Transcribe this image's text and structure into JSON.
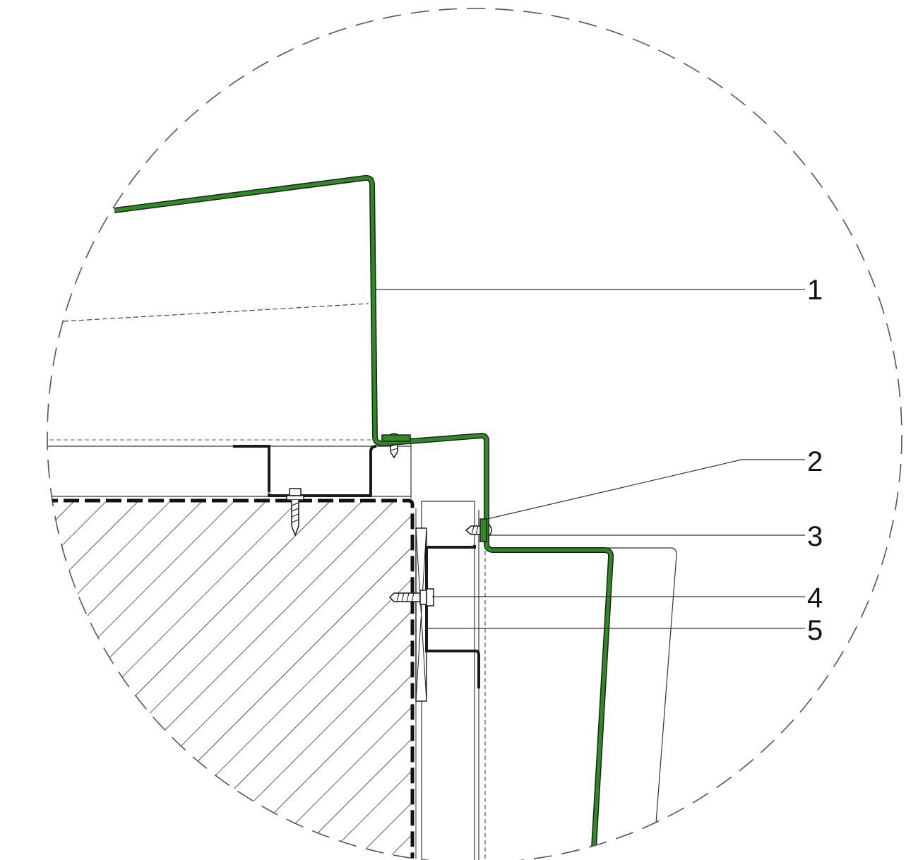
{
  "drawing": {
    "type": "architectural detail section",
    "outline": "dashed circle",
    "highlight_color": "#2e8b23",
    "line_color": "#1a1a1a",
    "callouts": [
      {
        "id": "1",
        "label": "1"
      },
      {
        "id": "2",
        "label": "2"
      },
      {
        "id": "3",
        "label": "3"
      },
      {
        "id": "4",
        "label": "4"
      },
      {
        "id": "5",
        "label": "5"
      }
    ]
  }
}
